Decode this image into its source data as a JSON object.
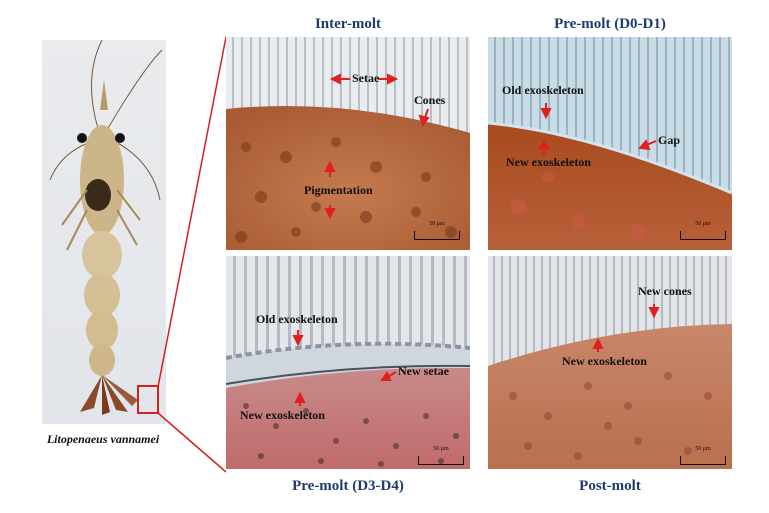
{
  "panels": {
    "intermolt": {
      "title": "Inter-molt",
      "labels": {
        "setae": "Setae",
        "cones": "Cones",
        "pigmentation": "Pigmentation"
      },
      "scale": "50 μm"
    },
    "premolt_d0": {
      "title": "Pre-molt (D0-D1)",
      "labels": {
        "old_exo": "Old exoskeleton",
        "gap": "Gap",
        "new_exo": "New exoskeleton"
      },
      "scale": "50 μm"
    },
    "premolt_d3": {
      "title": "Pre-molt (D3-D4)",
      "labels": {
        "old_exo": "Old exoskeleton",
        "new_setae": "New setae",
        "new_exo": "New exoskeleton"
      },
      "scale": "50 μm"
    },
    "postmolt": {
      "title": "Post-molt",
      "labels": {
        "new_cones": "New cones",
        "new_exo": "New exoskeleton"
      },
      "scale": "50 μm"
    }
  },
  "species_caption": "Litopenaeus vannamei",
  "colors": {
    "title_blue": "#1f3a6b",
    "arrow_red": "#e02020",
    "highlight_box": "#d42020"
  }
}
